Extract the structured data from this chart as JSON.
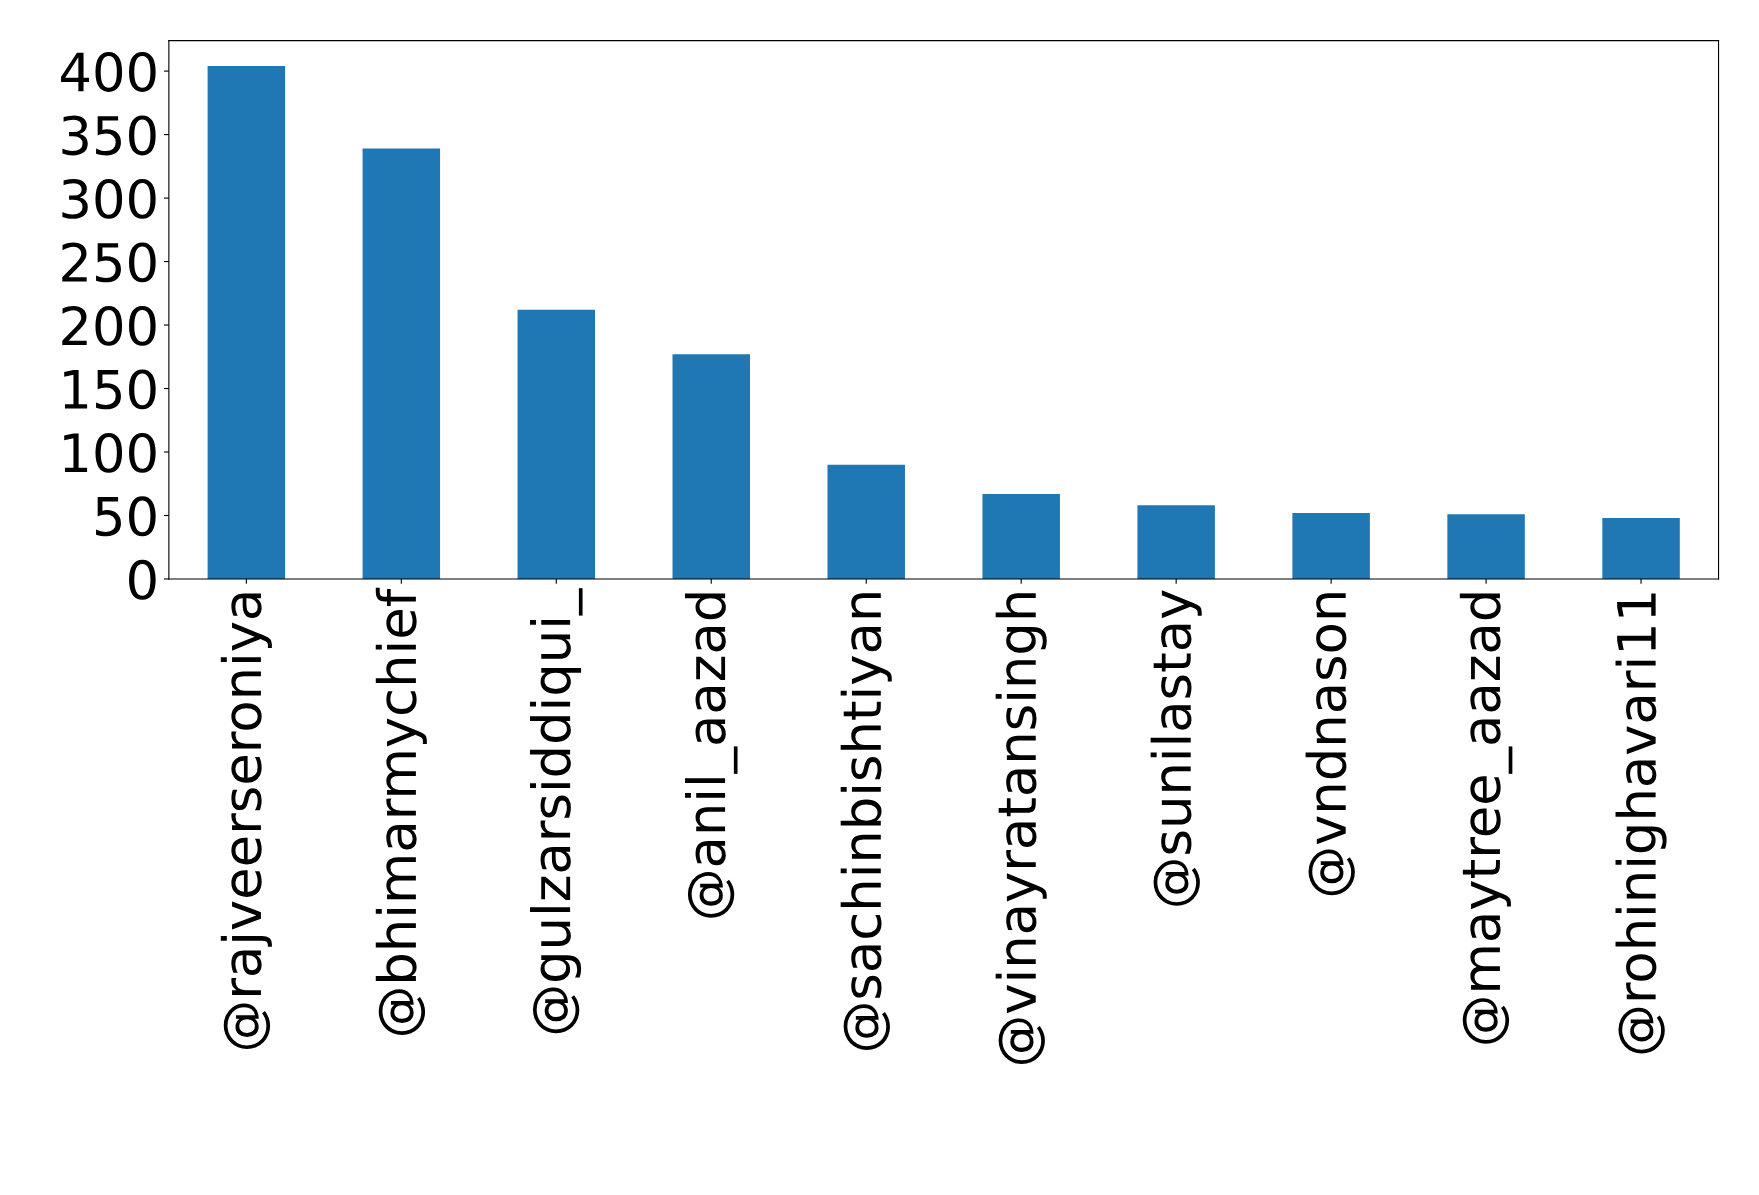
{
  "chart_data": {
    "type": "bar",
    "categories": [
      "@rajveerseroniya",
      "@bhimarmychief",
      "@gulzarsiddiqui_",
      "@anil_aazad",
      "@sachinbishtiyan",
      "@vinayratansingh",
      "@sunilastay",
      "@vndnason",
      "@maytree_aazad",
      "@rohinighavari11"
    ],
    "values": [
      404,
      339,
      212,
      177,
      90,
      67,
      58,
      52,
      51,
      48
    ],
    "color": "#1f77b4",
    "ylim": [
      0,
      424
    ],
    "yticks": [
      0,
      50,
      100,
      150,
      200,
      250,
      300,
      350,
      400
    ],
    "grid": false,
    "legend": false
  }
}
